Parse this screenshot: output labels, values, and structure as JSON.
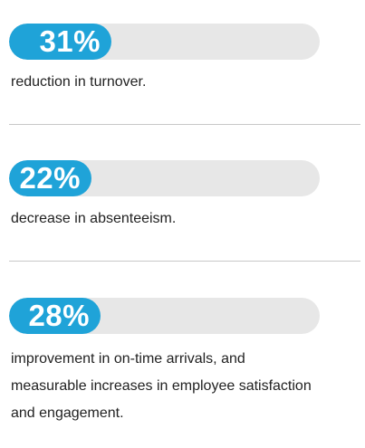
{
  "stats": [
    {
      "value_label": "31%",
      "value": 31,
      "description": "reduction in turnover."
    },
    {
      "value_label": "22%",
      "value": 22,
      "description": "decrease in absenteeism."
    },
    {
      "value_label": "28%",
      "value": 28,
      "description_lines": [
        "improvement in on-time arrivals, and",
        "measurable increases in employee satisfaction",
        "and engagement."
      ]
    }
  ],
  "colors": {
    "accent": "#1fa3d8",
    "track": "#e7e7e7",
    "divider": "#c8c8c8",
    "text": "#222222"
  }
}
